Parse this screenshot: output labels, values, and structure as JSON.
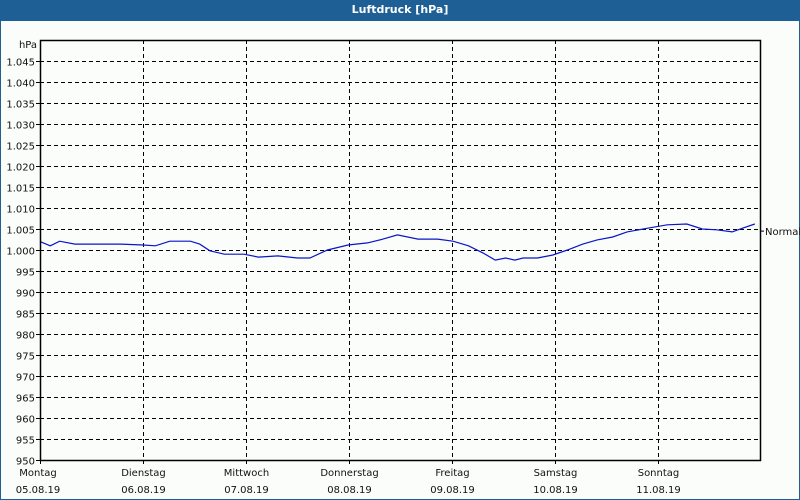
{
  "window": {
    "title": "Luftdruck [hPa]",
    "colors": {
      "titlebar": "#1e6095",
      "background": "#fbfdfb",
      "line": "#0a14c8",
      "grid": "#000000"
    }
  },
  "chart_data": {
    "type": "line",
    "title": "Luftdruck [hPa]",
    "ylabel": "hPa",
    "xlabel": "",
    "ylim": [
      950,
      1050
    ],
    "yticks": [
      950,
      955,
      960,
      965,
      970,
      975,
      980,
      985,
      990,
      995,
      1000,
      1005,
      1010,
      1015,
      1020,
      1025,
      1030,
      1035,
      1040,
      1045
    ],
    "ytick_labels": [
      "950",
      "955",
      "960",
      "965",
      "970",
      "975",
      "980",
      "985",
      "990",
      "995",
      "1.000",
      "1.005",
      "1.010",
      "1.015",
      "1.020",
      "1.025",
      "1.030",
      "1.035",
      "1.040",
      "1.045"
    ],
    "x_ticks": [
      {
        "day": "Montag",
        "date": "05.08.19"
      },
      {
        "day": "Dienstag",
        "date": "06.08.19"
      },
      {
        "day": "Mittwoch",
        "date": "07.08.19"
      },
      {
        "day": "Donnerstag",
        "date": "08.08.19"
      },
      {
        "day": "Freitag",
        "date": "09.08.19"
      },
      {
        "day": "Samstag",
        "date": "10.08.19"
      },
      {
        "day": "Sonntag",
        "date": "11.08.19"
      }
    ],
    "grid": true,
    "annotation": {
      "text": "Normal",
      "value": 1004.5
    },
    "series": [
      {
        "name": "Luftdruck",
        "x_days": [
          0.0,
          0.1,
          0.19,
          0.34,
          0.58,
          0.78,
          1.0,
          1.12,
          1.26,
          1.46,
          1.55,
          1.65,
          1.79,
          1.98,
          2.12,
          2.31,
          2.5,
          2.62,
          2.79,
          2.99,
          3.18,
          3.33,
          3.47,
          3.67,
          3.86,
          4.01,
          4.16,
          4.3,
          4.42,
          4.52,
          4.61,
          4.69,
          4.83,
          4.98,
          5.12,
          5.27,
          5.41,
          5.56,
          5.7,
          5.9,
          6.09,
          6.28,
          6.43,
          6.57,
          6.72,
          6.82,
          6.94
        ],
        "values": [
          1002.0,
          1001.0,
          1002.1,
          1001.4,
          1001.4,
          1001.4,
          1001.2,
          1001.0,
          1002.1,
          1002.1,
          1001.4,
          999.8,
          999.0,
          999.0,
          998.3,
          998.6,
          998.1,
          998.1,
          1000.0,
          1001.2,
          1001.7,
          1002.6,
          1003.6,
          1002.6,
          1002.6,
          1002.1,
          1001.0,
          999.3,
          997.6,
          998.1,
          997.6,
          998.1,
          998.1,
          998.8,
          1000.0,
          1001.4,
          1002.4,
          1003.1,
          1004.3,
          1005.2,
          1006.0,
          1006.2,
          1005.0,
          1004.8,
          1004.3,
          1005.2,
          1006.2
        ]
      }
    ]
  }
}
